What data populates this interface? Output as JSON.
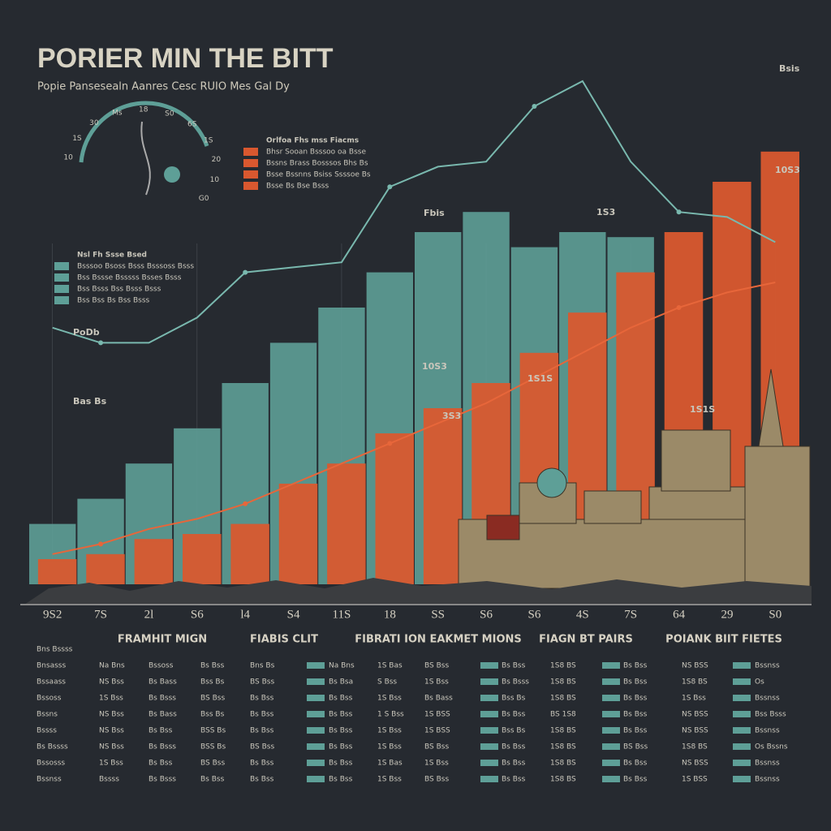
{
  "chart_data": {
    "type": "bar",
    "title": "PORIER MIN THE BITT",
    "subtitle": "Popie Pansesealn Aanres Cesc RUIO Mes Gal Dy",
    "categories": [
      "9S2",
      "7S",
      "2l",
      "S6",
      "l4",
      "S4",
      "11S",
      "18",
      "SS",
      "S6",
      "S6",
      "4S",
      "7S",
      "64",
      "29",
      "S0"
    ],
    "ylim": [
      0,
      100
    ],
    "series": [
      {
        "color": "#5e9f97",
        "values": [
          12,
          17,
          24,
          31,
          40,
          48,
          55,
          62,
          70,
          74,
          67,
          70,
          69,
          0,
          0,
          0
        ]
      },
      {
        "color": "#d9582f",
        "values": [
          5,
          6,
          9,
          10,
          12,
          20,
          24,
          30,
          35,
          40,
          46,
          54,
          62,
          70,
          80,
          86
        ]
      }
    ],
    "lines": [
      {
        "color": "#79b8ae",
        "values": [
          51,
          48,
          48,
          53,
          62,
          63,
          64,
          79,
          83,
          84,
          95,
          100,
          84,
          74,
          73,
          68
        ]
      },
      {
        "color": "#e7663a",
        "values": [
          6,
          8,
          11,
          13,
          16,
          20,
          24,
          28,
          32,
          36,
          41,
          46,
          51,
          55,
          58,
          60
        ]
      }
    ],
    "annotations": [
      "1S3",
      "Fbis",
      "10S3",
      "Bsis",
      "PoDb",
      "Bas Bs",
      "10S3",
      "1S1S",
      "1S1S",
      "3S3"
    ]
  },
  "gauge": {
    "labels": [
      "10",
      "1S",
      "30",
      "Ms",
      "18",
      "S0",
      "6S",
      "1S",
      "20",
      "10",
      "G0"
    ]
  },
  "legends": [
    {
      "title": "Orlfoa Fhs mss Fiacms",
      "items": [
        "Bhsr Sooan Bsssoo oa Bsse",
        "Bssns Brass Bosssos Bhs Bs",
        "Bsse Bssnns Bsiss Ssssoe Bs",
        "Bsse Bs Bse Bsss"
      ]
    },
    {
      "title": "Nsl Fh Ssse Bsed",
      "items": [
        "Bsssoo Bsoss Bsss Bsssoss Bsss",
        "Bss Bssse Bsssss Bsses Bsss",
        "Bss Bsss Bss Bsss Bsss",
        "Bss Bss Bs Bss Bsss"
      ]
    }
  ],
  "table": {
    "corner": "Bns Bssss",
    "headers": [
      "FRAMHIT MIGN",
      "FIABIS CLIT",
      "FIBRATI ION EAKMET MIONS",
      "FIAGN BT PAIRS",
      "POIANK BIIT FIETES"
    ],
    "rows": [
      [
        "Bnsasss",
        "Na Bns",
        "Bssoss",
        "Bs Bss",
        "Bns Bs",
        "Na Bns",
        "1S Bas",
        "BS Bss",
        "Bs Bss",
        "1S8 BS",
        "Bs Bss",
        "NS BSS",
        "Bssnss"
      ],
      [
        "Bssaass",
        "NS Bss",
        "Bs Bass",
        "Bss Bs",
        "BS Bss",
        "Bs Bsa",
        "S Bss",
        "1S Bss",
        "Bs Bsss",
        "1S8 BS",
        "Bs Bss",
        "1S8 BS",
        "Os"
      ],
      [
        "Bssoss",
        "1S Bss",
        "Bs Bsss",
        "BS Bss",
        "Bs Bss",
        "Bs Bss",
        "1S Bss",
        "Bs Bass",
        "Bss Bs",
        "1S8 BS",
        "Bs Bss",
        "1S Bss",
        "Bssnss"
      ],
      [
        "Bssns",
        "NS Bss",
        "Bs Bass",
        "Bss Bs",
        "Bs Bss",
        "Bs Bss",
        "1 S Bss",
        "1S BSS",
        "Bs Bss",
        "BS 1S8",
        "Bs Bss",
        "NS BSS",
        "Bss Bsss"
      ],
      [
        "Bssss",
        "NS Bss",
        "Bs Bss",
        "BSS Bs",
        "Bs Bss",
        "Bs Bss",
        "1S Bss",
        "1S BSS",
        "Bss Bs",
        "1S8 BS",
        "Bs Bss",
        "NS BSS",
        "Bssnss"
      ],
      [
        "Bs Bssss",
        "NS Bss",
        "Bs Bsss",
        "BSS Bs",
        "BS Bss",
        "Bs Bss",
        "1S Bss",
        "BS Bss",
        "Bs Bss",
        "1S8 BS",
        "BS Bss",
        "1S8 BS",
        "Os Bssns"
      ],
      [
        "Bssosss",
        "1S Bss",
        "Bs Bss",
        "BS Bss",
        "Bs Bss",
        "Bs Bss",
        "1S Bas",
        "1S Bss",
        "Bs Bss",
        "1S8 BS",
        "Bs Bss",
        "NS BSS",
        "Bssnss"
      ],
      [
        "Bssnss",
        "Bssss",
        "Bs Bsss",
        "Bs Bss",
        "Bs Bss",
        "Bs Bss",
        "1S Bss",
        "BS Bss",
        "Bs Bss",
        "1S8 BS",
        "Bs Bss",
        "1S BSS",
        "Bssnss"
      ]
    ]
  }
}
